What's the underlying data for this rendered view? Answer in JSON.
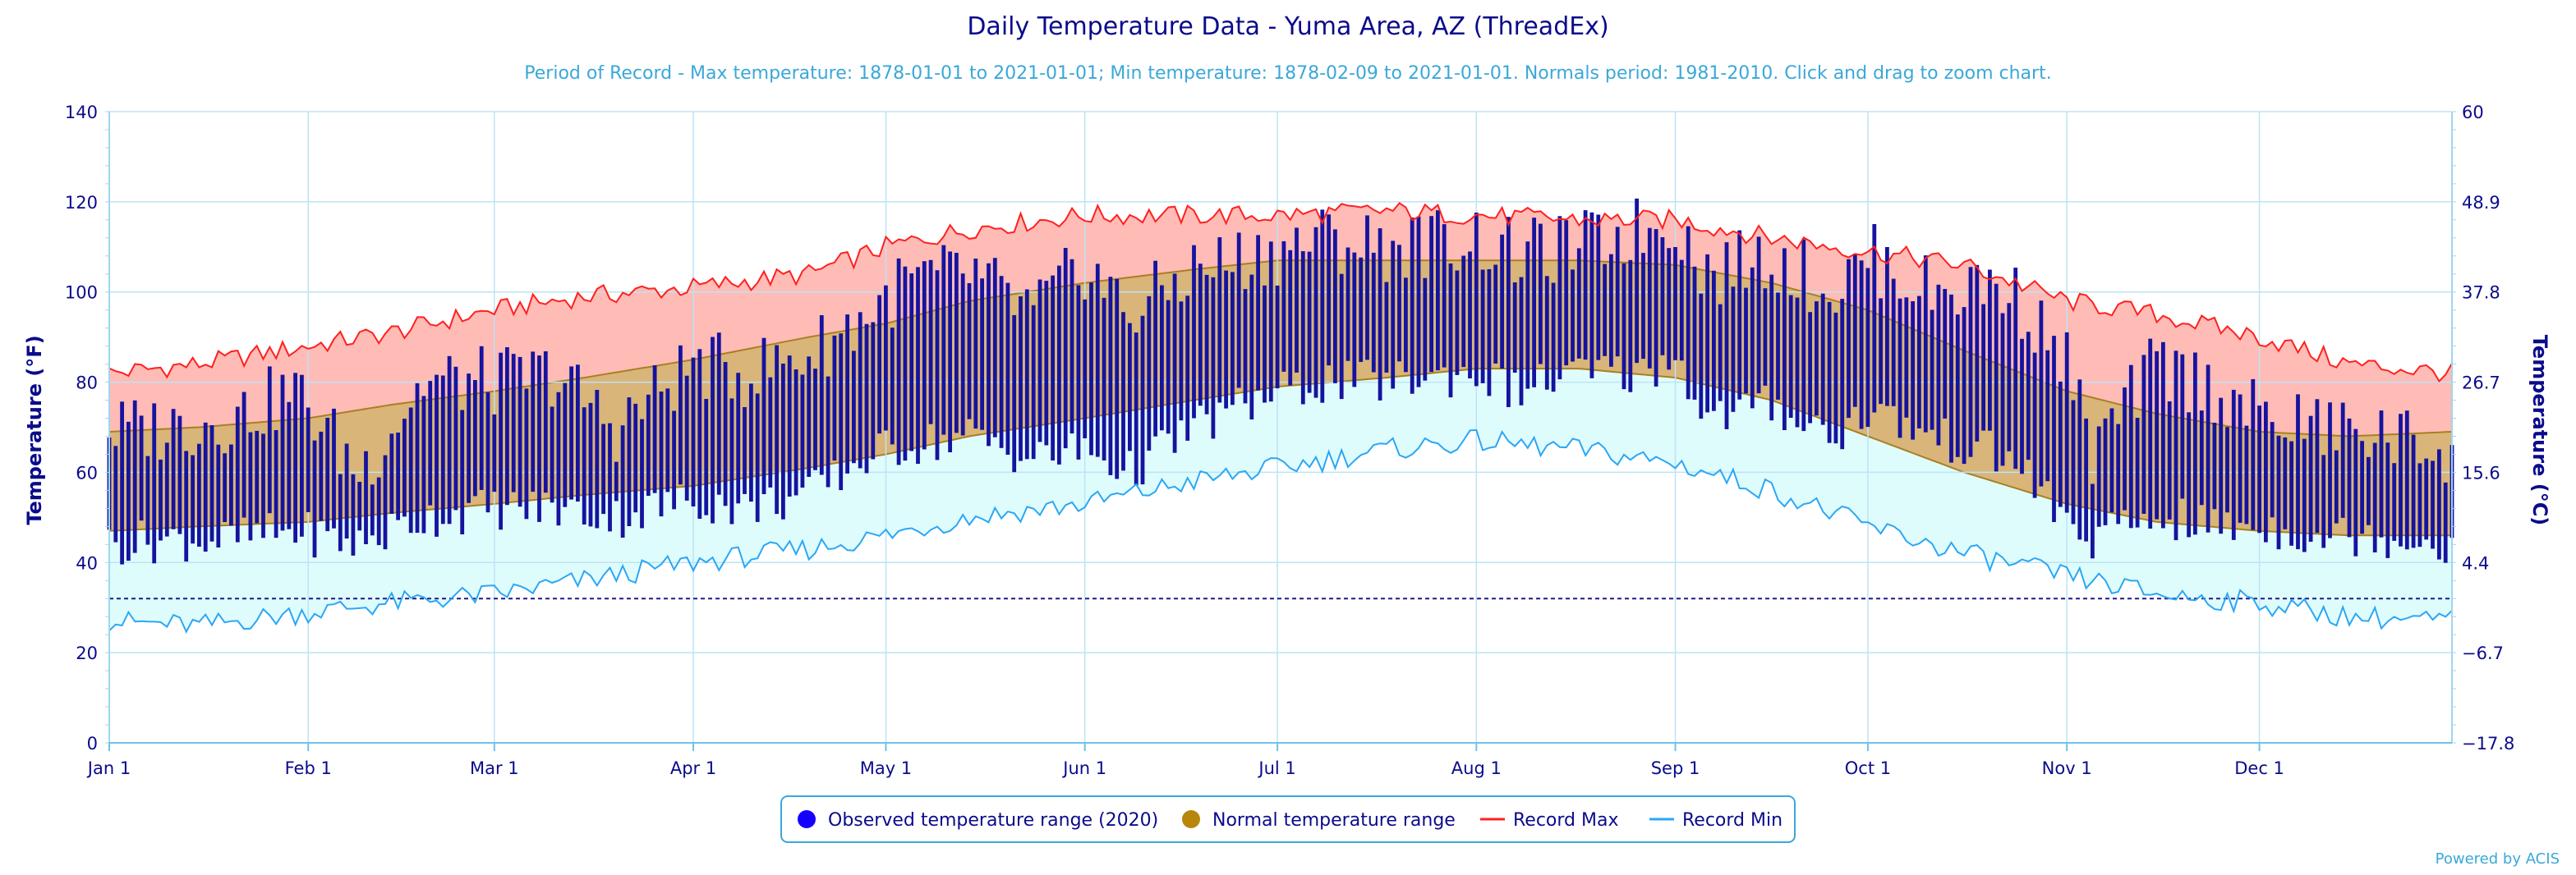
{
  "chart_data": {
    "type": "area",
    "title": "Daily Temperature Data - Yuma Area, AZ (ThreadEx)",
    "subtitle": "Period of Record - Max temperature: 1878-01-01 to 2021-01-01; Min temperature: 1878-02-09 to 2021-01-01. Normals period: 1981-2010. Click and drag to zoom chart.",
    "ylabel_left": "Temperature (°F)",
    "ylabel_right": "Temperature (°C)",
    "ylim": [
      0,
      140
    ],
    "y_ticks": [
      "0",
      "20",
      "40",
      "60",
      "80",
      "100",
      "120",
      "140"
    ],
    "y_ticks_right": [
      "−17.8",
      "−6.7",
      "4.4",
      "15.6",
      "26.7",
      "37.8",
      "48.9",
      "60"
    ],
    "freeze_line": 32,
    "x_ticks": [
      "Jan 1",
      "Feb 1",
      "Mar 1",
      "Apr 1",
      "May 1",
      "Jun 1",
      "Jul 1",
      "Aug 1",
      "Sep 1",
      "Oct 1",
      "Nov 1",
      "Dec 1"
    ],
    "x_tick_days": [
      1,
      32,
      61,
      92,
      122,
      153,
      183,
      214,
      245,
      275,
      306,
      336
    ],
    "days_in_year": 366,
    "record_max_anchors": [
      [
        1,
        82
      ],
      [
        15,
        84
      ],
      [
        32,
        88
      ],
      [
        45,
        91
      ],
      [
        61,
        96
      ],
      [
        75,
        99
      ],
      [
        92,
        101
      ],
      [
        110,
        104
      ],
      [
        122,
        110
      ],
      [
        135,
        114
      ],
      [
        153,
        117
      ],
      [
        170,
        117
      ],
      [
        183,
        117
      ],
      [
        200,
        118
      ],
      [
        214,
        117
      ],
      [
        230,
        116
      ],
      [
        245,
        116
      ],
      [
        260,
        112
      ],
      [
        275,
        109
      ],
      [
        290,
        106
      ],
      [
        306,
        98
      ],
      [
        320,
        95
      ],
      [
        336,
        90
      ],
      [
        350,
        84
      ],
      [
        366,
        82
      ]
    ],
    "record_min_anchors": [
      [
        1,
        27
      ],
      [
        15,
        26
      ],
      [
        32,
        29
      ],
      [
        45,
        31
      ],
      [
        61,
        33
      ],
      [
        75,
        36
      ],
      [
        92,
        40
      ],
      [
        110,
        43
      ],
      [
        122,
        46
      ],
      [
        135,
        50
      ],
      [
        153,
        53
      ],
      [
        170,
        58
      ],
      [
        183,
        61
      ],
      [
        200,
        65
      ],
      [
        214,
        67
      ],
      [
        230,
        65
      ],
      [
        245,
        62
      ],
      [
        260,
        56
      ],
      [
        275,
        48
      ],
      [
        290,
        42
      ],
      [
        306,
        37
      ],
      [
        320,
        33
      ],
      [
        336,
        31
      ],
      [
        350,
        28
      ],
      [
        366,
        27
      ]
    ],
    "normal_max_anchors": [
      [
        1,
        69
      ],
      [
        15,
        70
      ],
      [
        32,
        72
      ],
      [
        45,
        75
      ],
      [
        61,
        78
      ],
      [
        75,
        81
      ],
      [
        92,
        85
      ],
      [
        110,
        90
      ],
      [
        122,
        93
      ],
      [
        135,
        98
      ],
      [
        153,
        102
      ],
      [
        170,
        105
      ],
      [
        183,
        107
      ],
      [
        200,
        107
      ],
      [
        214,
        107
      ],
      [
        230,
        107
      ],
      [
        245,
        106
      ],
      [
        260,
        102
      ],
      [
        275,
        96
      ],
      [
        290,
        87
      ],
      [
        306,
        78
      ],
      [
        320,
        73
      ],
      [
        336,
        69
      ],
      [
        350,
        68
      ],
      [
        366,
        69
      ]
    ],
    "normal_min_anchors": [
      [
        1,
        47
      ],
      [
        15,
        48
      ],
      [
        32,
        49
      ],
      [
        45,
        51
      ],
      [
        61,
        53
      ],
      [
        75,
        55
      ],
      [
        92,
        57
      ],
      [
        110,
        61
      ],
      [
        122,
        64
      ],
      [
        135,
        68
      ],
      [
        153,
        72
      ],
      [
        170,
        76
      ],
      [
        183,
        79
      ],
      [
        200,
        81
      ],
      [
        214,
        83
      ],
      [
        230,
        83
      ],
      [
        245,
        81
      ],
      [
        260,
        76
      ],
      [
        275,
        68
      ],
      [
        290,
        60
      ],
      [
        306,
        53
      ],
      [
        320,
        49
      ],
      [
        336,
        47
      ],
      [
        350,
        46
      ],
      [
        366,
        46
      ]
    ],
    "observed_2020_anchors": [
      [
        1,
        69,
        44
      ],
      [
        10,
        70,
        45
      ],
      [
        20,
        72,
        45
      ],
      [
        30,
        78,
        47
      ],
      [
        40,
        60,
        44
      ],
      [
        50,
        80,
        50
      ],
      [
        61,
        80,
        52
      ],
      [
        70,
        82,
        52
      ],
      [
        80,
        70,
        50
      ],
      [
        92,
        84,
        54
      ],
      [
        100,
        82,
        52
      ],
      [
        110,
        86,
        55
      ],
      [
        120,
        96,
        64
      ],
      [
        125,
        102,
        66
      ],
      [
        135,
        104,
        68
      ],
      [
        145,
        95,
        63
      ],
      [
        153,
        106,
        65
      ],
      [
        160,
        95,
        60
      ],
      [
        170,
        105,
        70
      ],
      [
        180,
        108,
        76
      ],
      [
        190,
        112,
        80
      ],
      [
        200,
        110,
        80
      ],
      [
        214,
        112,
        82
      ],
      [
        220,
        108,
        78
      ],
      [
        230,
        110,
        82
      ],
      [
        240,
        114,
        82
      ],
      [
        245,
        116,
        86
      ],
      [
        250,
        104,
        72
      ],
      [
        260,
        108,
        75
      ],
      [
        270,
        100,
        68
      ],
      [
        275,
        108,
        74
      ],
      [
        285,
        100,
        68
      ],
      [
        295,
        102,
        64
      ],
      [
        300,
        96,
        60
      ],
      [
        306,
        84,
        48
      ],
      [
        310,
        64,
        45
      ],
      [
        320,
        84,
        50
      ],
      [
        330,
        78,
        48
      ],
      [
        336,
        72,
        48
      ],
      [
        345,
        70,
        46
      ],
      [
        355,
        68,
        46
      ],
      [
        366,
        65,
        44
      ]
    ],
    "legend": [
      {
        "name": "Observed temperature range (2020)",
        "color": "#1500ff",
        "symbol": "circle"
      },
      {
        "name": "Normal temperature range",
        "color": "#b8860b",
        "symbol": "circle"
      },
      {
        "name": "Record Max",
        "color": "#ff2020",
        "symbol": "line"
      },
      {
        "name": "Record Min",
        "color": "#2aa7f5",
        "symbol": "line"
      }
    ],
    "colors": {
      "record_band": "#ffbbb6",
      "normal_band": "#d9b57a",
      "cold_band": "#dffcfc",
      "observed_bar": "#16139e",
      "record_max_line": "#ff2020",
      "record_min_line": "#2aa7f5",
      "normal_edge": "#a88020",
      "grid": "#bde3f5",
      "freeze_line": "#1a1a8c"
    },
    "grid": true,
    "legend_position": "bottom",
    "credits": "Powered by ACIS"
  }
}
